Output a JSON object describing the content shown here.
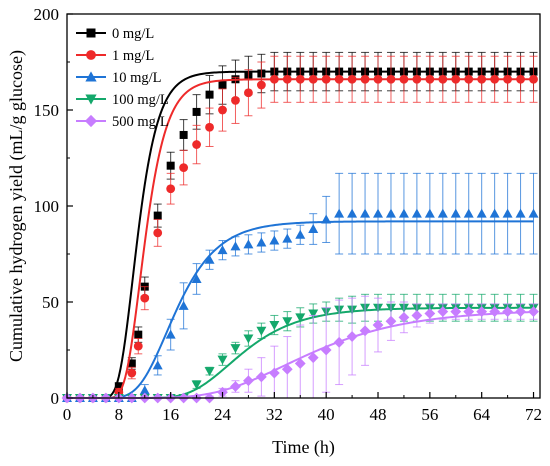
{
  "chart_data": {
    "type": "scatter",
    "xlabel": "Time (h)",
    "ylabel": "Cumulative hydrogen yield (mL/g glucose)",
    "xlim": [
      0,
      73
    ],
    "ylim": [
      0,
      200
    ],
    "xticks": [
      0,
      8,
      16,
      24,
      32,
      40,
      48,
      56,
      64,
      72
    ],
    "yticks": [
      0,
      50,
      100,
      150,
      200
    ],
    "legend_position": "top-left",
    "grid": false,
    "series": [
      {
        "name": "0 mg/L",
        "color": "#000000",
        "fit_color": "#000000",
        "marker": "square",
        "fit": {
          "Pmax": 170,
          "Rm": 29,
          "lambda": 8.0
        },
        "points": [
          {
            "x": 0,
            "y": 0,
            "err": 0
          },
          {
            "x": 2,
            "y": 0,
            "err": 0
          },
          {
            "x": 4,
            "y": 0,
            "err": 0
          },
          {
            "x": 6,
            "y": 0,
            "err": 0
          },
          {
            "x": 8,
            "y": 6,
            "err": 2
          },
          {
            "x": 10,
            "y": 18,
            "err": 3
          },
          {
            "x": 11,
            "y": 33,
            "err": 4
          },
          {
            "x": 12,
            "y": 58,
            "err": 5
          },
          {
            "x": 14,
            "y": 95,
            "err": 6
          },
          {
            "x": 16,
            "y": 121,
            "err": 7
          },
          {
            "x": 18,
            "y": 137,
            "err": 8
          },
          {
            "x": 20,
            "y": 149,
            "err": 9
          },
          {
            "x": 22,
            "y": 158,
            "err": 10
          },
          {
            "x": 24,
            "y": 163,
            "err": 10
          },
          {
            "x": 26,
            "y": 166,
            "err": 10
          },
          {
            "x": 28,
            "y": 168,
            "err": 10
          },
          {
            "x": 30,
            "y": 169,
            "err": 10
          },
          {
            "x": 32,
            "y": 170,
            "err": 10
          },
          {
            "x": 34,
            "y": 170,
            "err": 10
          },
          {
            "x": 36,
            "y": 170,
            "err": 10
          },
          {
            "x": 38,
            "y": 170,
            "err": 10
          },
          {
            "x": 40,
            "y": 170,
            "err": 10
          },
          {
            "x": 42,
            "y": 170,
            "err": 10
          },
          {
            "x": 44,
            "y": 170,
            "err": 10
          },
          {
            "x": 46,
            "y": 170,
            "err": 10
          },
          {
            "x": 48,
            "y": 170,
            "err": 10
          },
          {
            "x": 50,
            "y": 170,
            "err": 10
          },
          {
            "x": 52,
            "y": 170,
            "err": 10
          },
          {
            "x": 54,
            "y": 170,
            "err": 10
          },
          {
            "x": 56,
            "y": 170,
            "err": 10
          },
          {
            "x": 58,
            "y": 170,
            "err": 10
          },
          {
            "x": 60,
            "y": 170,
            "err": 10
          },
          {
            "x": 62,
            "y": 170,
            "err": 10
          },
          {
            "x": 64,
            "y": 170,
            "err": 10
          },
          {
            "x": 66,
            "y": 170,
            "err": 10
          },
          {
            "x": 68,
            "y": 170,
            "err": 10
          },
          {
            "x": 70,
            "y": 170,
            "err": 10
          },
          {
            "x": 72,
            "y": 170,
            "err": 10
          }
        ]
      },
      {
        "name": "1 mg/L",
        "color": "#ee2a2a",
        "fit_color": "#ee2a2a",
        "marker": "circle",
        "fit": {
          "Pmax": 166,
          "Rm": 27,
          "lambda": 9.0
        },
        "points": [
          {
            "x": 0,
            "y": 0,
            "err": 0
          },
          {
            "x": 2,
            "y": 0,
            "err": 0
          },
          {
            "x": 4,
            "y": 0,
            "err": 0
          },
          {
            "x": 6,
            "y": 0,
            "err": 0
          },
          {
            "x": 8,
            "y": 3,
            "err": 2
          },
          {
            "x": 10,
            "y": 13,
            "err": 3
          },
          {
            "x": 11,
            "y": 27,
            "err": 4
          },
          {
            "x": 12,
            "y": 52,
            "err": 6
          },
          {
            "x": 14,
            "y": 86,
            "err": 7
          },
          {
            "x": 16,
            "y": 109,
            "err": 8
          },
          {
            "x": 18,
            "y": 120,
            "err": 9
          },
          {
            "x": 20,
            "y": 132,
            "err": 10
          },
          {
            "x": 22,
            "y": 141,
            "err": 10
          },
          {
            "x": 24,
            "y": 150,
            "err": 11
          },
          {
            "x": 26,
            "y": 155,
            "err": 12
          },
          {
            "x": 28,
            "y": 159,
            "err": 12
          },
          {
            "x": 30,
            "y": 163,
            "err": 12
          },
          {
            "x": 32,
            "y": 166,
            "err": 12
          },
          {
            "x": 34,
            "y": 166,
            "err": 12
          },
          {
            "x": 36,
            "y": 166,
            "err": 12
          },
          {
            "x": 38,
            "y": 166,
            "err": 12
          },
          {
            "x": 40,
            "y": 166,
            "err": 12
          },
          {
            "x": 42,
            "y": 166,
            "err": 12
          },
          {
            "x": 44,
            "y": 166,
            "err": 12
          },
          {
            "x": 46,
            "y": 166,
            "err": 12
          },
          {
            "x": 48,
            "y": 166,
            "err": 12
          },
          {
            "x": 50,
            "y": 166,
            "err": 12
          },
          {
            "x": 52,
            "y": 166,
            "err": 12
          },
          {
            "x": 54,
            "y": 166,
            "err": 12
          },
          {
            "x": 56,
            "y": 166,
            "err": 12
          },
          {
            "x": 58,
            "y": 166,
            "err": 12
          },
          {
            "x": 60,
            "y": 166,
            "err": 12
          },
          {
            "x": 62,
            "y": 166,
            "err": 12
          },
          {
            "x": 64,
            "y": 166,
            "err": 12
          },
          {
            "x": 66,
            "y": 166,
            "err": 12
          },
          {
            "x": 68,
            "y": 166,
            "err": 12
          },
          {
            "x": 70,
            "y": 166,
            "err": 12
          },
          {
            "x": 72,
            "y": 166,
            "err": 12
          }
        ]
      },
      {
        "name": "10 mg/L",
        "color": "#1f74d6",
        "fit_color": "#1f74d6",
        "marker": "triangle-up",
        "fit": {
          "Pmax": 92,
          "Rm": 7.8,
          "lambda": 11.0
        },
        "points": [
          {
            "x": 0,
            "y": 0,
            "err": 0
          },
          {
            "x": 2,
            "y": 0,
            "err": 0
          },
          {
            "x": 4,
            "y": 0,
            "err": 0
          },
          {
            "x": 6,
            "y": 0,
            "err": 0
          },
          {
            "x": 8,
            "y": 0,
            "err": 0
          },
          {
            "x": 10,
            "y": 0,
            "err": 1
          },
          {
            "x": 12,
            "y": 4,
            "err": 3
          },
          {
            "x": 14,
            "y": 17,
            "err": 5
          },
          {
            "x": 16,
            "y": 33,
            "err": 8
          },
          {
            "x": 18,
            "y": 48,
            "err": 12
          },
          {
            "x": 20,
            "y": 62,
            "err": 8
          },
          {
            "x": 22,
            "y": 72,
            "err": 5
          },
          {
            "x": 24,
            "y": 77,
            "err": 5
          },
          {
            "x": 26,
            "y": 79,
            "err": 5
          },
          {
            "x": 28,
            "y": 80,
            "err": 5
          },
          {
            "x": 30,
            "y": 81,
            "err": 5
          },
          {
            "x": 32,
            "y": 82,
            "err": 5
          },
          {
            "x": 34,
            "y": 83,
            "err": 5
          },
          {
            "x": 36,
            "y": 85,
            "err": 5
          },
          {
            "x": 38,
            "y": 88,
            "err": 8
          },
          {
            "x": 40,
            "y": 93,
            "err": 12
          },
          {
            "x": 42,
            "y": 96,
            "err": 21
          },
          {
            "x": 44,
            "y": 96,
            "err": 21
          },
          {
            "x": 46,
            "y": 96,
            "err": 21
          },
          {
            "x": 48,
            "y": 96,
            "err": 21
          },
          {
            "x": 50,
            "y": 96,
            "err": 21
          },
          {
            "x": 52,
            "y": 96,
            "err": 21
          },
          {
            "x": 54,
            "y": 96,
            "err": 21
          },
          {
            "x": 56,
            "y": 96,
            "err": 21
          },
          {
            "x": 58,
            "y": 96,
            "err": 21
          },
          {
            "x": 60,
            "y": 96,
            "err": 21
          },
          {
            "x": 62,
            "y": 96,
            "err": 21
          },
          {
            "x": 64,
            "y": 96,
            "err": 21
          },
          {
            "x": 66,
            "y": 96,
            "err": 21
          },
          {
            "x": 68,
            "y": 96,
            "err": 21
          },
          {
            "x": 70,
            "y": 96,
            "err": 21
          },
          {
            "x": 72,
            "y": 96,
            "err": 21
          }
        ]
      },
      {
        "name": "100 mg/L",
        "color": "#14a86b",
        "fit_color": "#14a86b",
        "marker": "triangle-down",
        "fit": {
          "Pmax": 47,
          "Rm": 2.9,
          "lambda": 19.0
        },
        "points": [
          {
            "x": 0,
            "y": 0,
            "err": 0
          },
          {
            "x": 2,
            "y": 0,
            "err": 0
          },
          {
            "x": 4,
            "y": 0,
            "err": 0
          },
          {
            "x": 6,
            "y": 0,
            "err": 0
          },
          {
            "x": 8,
            "y": 0,
            "err": 0
          },
          {
            "x": 10,
            "y": 0,
            "err": 0
          },
          {
            "x": 12,
            "y": 0,
            "err": 0
          },
          {
            "x": 14,
            "y": 0,
            "err": 0
          },
          {
            "x": 16,
            "y": 0,
            "err": 0
          },
          {
            "x": 18,
            "y": 0,
            "err": 0
          },
          {
            "x": 20,
            "y": 7,
            "err": 2
          },
          {
            "x": 22,
            "y": 14,
            "err": 2
          },
          {
            "x": 24,
            "y": 20,
            "err": 3
          },
          {
            "x": 26,
            "y": 26,
            "err": 3
          },
          {
            "x": 28,
            "y": 31,
            "err": 4
          },
          {
            "x": 30,
            "y": 35,
            "err": 4
          },
          {
            "x": 32,
            "y": 38,
            "err": 5
          },
          {
            "x": 34,
            "y": 40,
            "err": 5
          },
          {
            "x": 36,
            "y": 42,
            "err": 5
          },
          {
            "x": 38,
            "y": 44,
            "err": 5
          },
          {
            "x": 40,
            "y": 45,
            "err": 5
          },
          {
            "x": 42,
            "y": 46,
            "err": 6
          },
          {
            "x": 44,
            "y": 46,
            "err": 7
          },
          {
            "x": 46,
            "y": 47,
            "err": 7
          },
          {
            "x": 48,
            "y": 47,
            "err": 7
          },
          {
            "x": 50,
            "y": 47,
            "err": 7
          },
          {
            "x": 52,
            "y": 47,
            "err": 7
          },
          {
            "x": 54,
            "y": 47,
            "err": 7
          },
          {
            "x": 56,
            "y": 47,
            "err": 7
          },
          {
            "x": 58,
            "y": 47,
            "err": 7
          },
          {
            "x": 60,
            "y": 47,
            "err": 7
          },
          {
            "x": 62,
            "y": 47,
            "err": 7
          },
          {
            "x": 64,
            "y": 47,
            "err": 7
          },
          {
            "x": 66,
            "y": 47,
            "err": 7
          },
          {
            "x": 68,
            "y": 47,
            "err": 7
          },
          {
            "x": 70,
            "y": 47,
            "err": 7
          },
          {
            "x": 72,
            "y": 47,
            "err": 7
          }
        ]
      },
      {
        "name": "500 mg/L",
        "color": "#c77dff",
        "fit_color": "#c77dff",
        "marker": "diamond",
        "fit": {
          "Pmax": 46,
          "Rm": 1.6,
          "lambda": 23.0
        },
        "points": [
          {
            "x": 0,
            "y": 0,
            "err": 0
          },
          {
            "x": 2,
            "y": 0,
            "err": 0
          },
          {
            "x": 4,
            "y": 0,
            "err": 0
          },
          {
            "x": 6,
            "y": 0,
            "err": 0
          },
          {
            "x": 8,
            "y": 0,
            "err": 0
          },
          {
            "x": 10,
            "y": 0,
            "err": 0
          },
          {
            "x": 12,
            "y": 0,
            "err": 0
          },
          {
            "x": 14,
            "y": 0,
            "err": 0
          },
          {
            "x": 16,
            "y": 0,
            "err": 0
          },
          {
            "x": 18,
            "y": 0,
            "err": 0
          },
          {
            "x": 20,
            "y": 0,
            "err": 0
          },
          {
            "x": 22,
            "y": 0,
            "err": 1
          },
          {
            "x": 24,
            "y": 3,
            "err": 2
          },
          {
            "x": 26,
            "y": 6,
            "err": 3
          },
          {
            "x": 28,
            "y": 9,
            "err": 6
          },
          {
            "x": 30,
            "y": 11,
            "err": 10
          },
          {
            "x": 32,
            "y": 13,
            "err": 14
          },
          {
            "x": 34,
            "y": 15,
            "err": 17
          },
          {
            "x": 36,
            "y": 18,
            "err": 20
          },
          {
            "x": 38,
            "y": 21,
            "err": 22
          },
          {
            "x": 40,
            "y": 25,
            "err": 22
          },
          {
            "x": 42,
            "y": 29,
            "err": 22
          },
          {
            "x": 44,
            "y": 32,
            "err": 20
          },
          {
            "x": 46,
            "y": 35,
            "err": 18
          },
          {
            "x": 48,
            "y": 38,
            "err": 14
          },
          {
            "x": 50,
            "y": 40,
            "err": 10
          },
          {
            "x": 52,
            "y": 42,
            "err": 8
          },
          {
            "x": 54,
            "y": 43,
            "err": 6
          },
          {
            "x": 56,
            "y": 44,
            "err": 5
          },
          {
            "x": 58,
            "y": 45,
            "err": 4
          },
          {
            "x": 60,
            "y": 45,
            "err": 4
          },
          {
            "x": 62,
            "y": 45,
            "err": 4
          },
          {
            "x": 64,
            "y": 45,
            "err": 4
          },
          {
            "x": 66,
            "y": 45,
            "err": 4
          },
          {
            "x": 68,
            "y": 45,
            "err": 4
          },
          {
            "x": 70,
            "y": 45,
            "err": 4
          },
          {
            "x": 72,
            "y": 45,
            "err": 4
          }
        ]
      }
    ]
  }
}
